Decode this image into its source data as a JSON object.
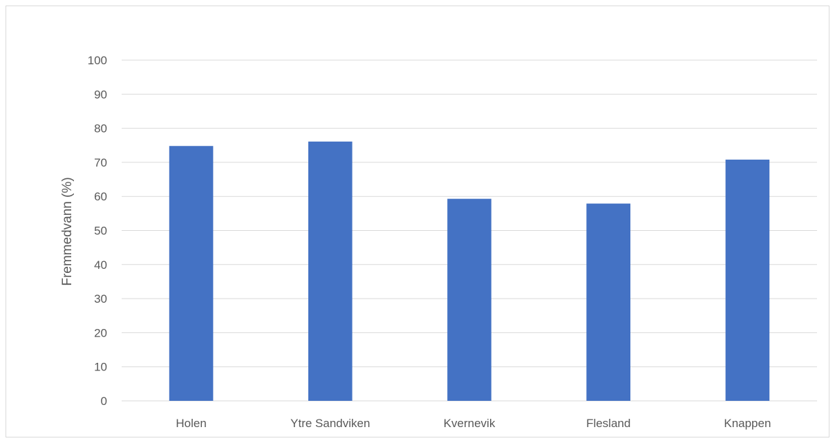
{
  "chart_data": {
    "type": "bar",
    "title": "",
    "xlabel": "",
    "ylabel": "Fremmedvann (%)",
    "categories": [
      "Holen",
      "Ytre Sandviken",
      "Kvernevik",
      "Flesland",
      "Knappen"
    ],
    "values": [
      74.8,
      76.1,
      59.3,
      57.9,
      70.8
    ],
    "ylim": [
      0,
      100
    ],
    "yticks": [
      0,
      10,
      20,
      30,
      40,
      50,
      60,
      70,
      80,
      90,
      100
    ],
    "grid": true,
    "legend": "none",
    "colors": {
      "bar": "#4472c4",
      "grid": "#d9d9d9",
      "text": "#595959"
    }
  }
}
